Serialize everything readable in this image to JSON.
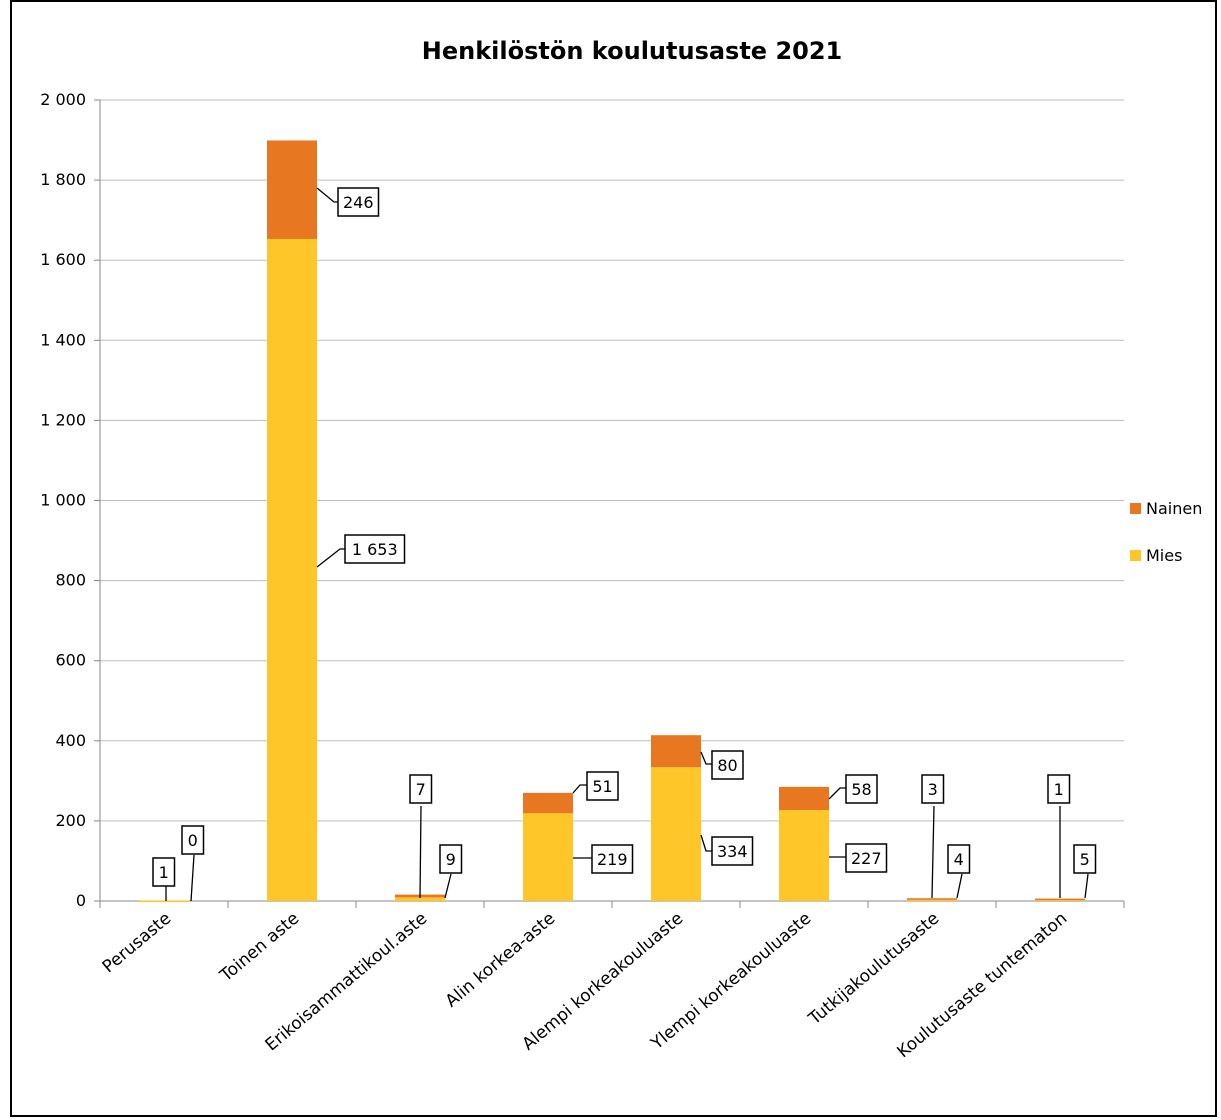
{
  "chart_data": {
    "type": "bar",
    "stacked": true,
    "title": "Henkilöstön koulutusaste 2021",
    "categories": [
      "Perusaste",
      "Toinen aste",
      "Erikoisammattikoul.aste",
      "Alin korkea-aste",
      "Alempi korkeakouluaste",
      "Ylempi korkeakouluaste",
      "Tutkijakoulutusaste",
      "Koulutusaste tuntematon"
    ],
    "series": [
      {
        "name": "Mies",
        "color": "#FFC629",
        "values": [
          1,
          1653,
          9,
          219,
          334,
          227,
          4,
          5
        ],
        "labels": [
          "1",
          "1 653",
          "9",
          "219",
          "334",
          "227",
          "4",
          "5"
        ]
      },
      {
        "name": "Nainen",
        "color": "#E87722",
        "values": [
          0,
          246,
          7,
          51,
          80,
          58,
          3,
          1
        ],
        "labels": [
          "0",
          "246",
          "7",
          "51",
          "80",
          "58",
          "3",
          "1"
        ]
      }
    ],
    "ylim": [
      0,
      2000
    ],
    "yticks": [
      "0",
      "200",
      "400",
      "600",
      "800",
      "1 000",
      "1 200",
      "1 400",
      "1 600",
      "1 800",
      "2 000"
    ],
    "grid": true,
    "legend": "right"
  }
}
